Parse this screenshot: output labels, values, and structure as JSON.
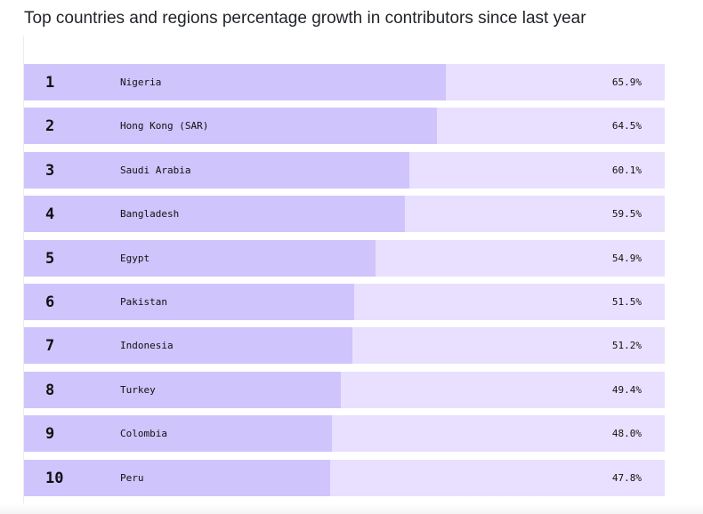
{
  "title": "Top countries and regions percentage growth in contributors since last year",
  "colors": {
    "bar": "#d0c4fc",
    "track": "#e8e0fe",
    "text": "#111111"
  },
  "chart_data": {
    "type": "bar",
    "orientation": "horizontal",
    "title": "Top countries and regions percentage growth in contributors since last year",
    "xlabel": "",
    "ylabel": "",
    "xlim": [
      0,
      100
    ],
    "categories": [
      "Nigeria",
      "Hong Kong (SAR)",
      "Saudi Arabia",
      "Bangladesh",
      "Egypt",
      "Pakistan",
      "Indonesia",
      "Turkey",
      "Colombia",
      "Peru"
    ],
    "values": [
      65.9,
      64.5,
      60.1,
      59.5,
      54.9,
      51.5,
      51.2,
      49.4,
      48.0,
      47.8
    ],
    "rows": [
      {
        "rank": "1",
        "name": "Nigeria",
        "value": 65.9,
        "label": "65.9%"
      },
      {
        "rank": "2",
        "name": "Hong Kong (SAR)",
        "value": 64.5,
        "label": "64.5%"
      },
      {
        "rank": "3",
        "name": "Saudi Arabia",
        "value": 60.1,
        "label": "60.1%"
      },
      {
        "rank": "4",
        "name": "Bangladesh",
        "value": 59.5,
        "label": "59.5%"
      },
      {
        "rank": "5",
        "name": "Egypt",
        "value": 54.9,
        "label": "54.9%"
      },
      {
        "rank": "6",
        "name": "Pakistan",
        "value": 51.5,
        "label": "51.5%"
      },
      {
        "rank": "7",
        "name": "Indonesia",
        "value": 51.2,
        "label": "51.2%"
      },
      {
        "rank": "8",
        "name": "Turkey",
        "value": 49.4,
        "label": "49.4%"
      },
      {
        "rank": "9",
        "name": "Colombia",
        "value": 48.0,
        "label": "48.0%"
      },
      {
        "rank": "10",
        "name": "Peru",
        "value": 47.8,
        "label": "47.8%"
      }
    ]
  }
}
